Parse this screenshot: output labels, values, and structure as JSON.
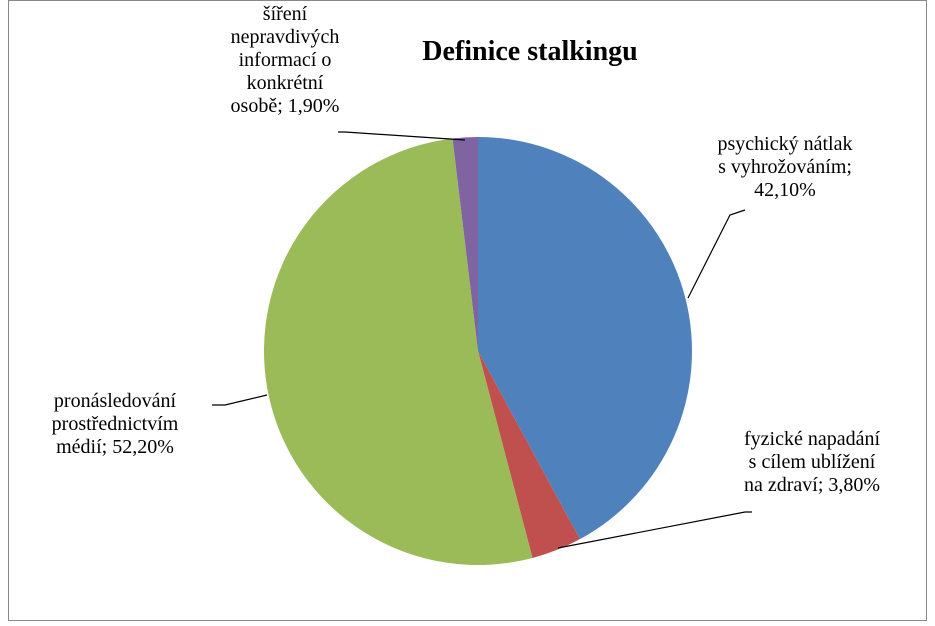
{
  "chart_data": {
    "type": "pie",
    "title": "Definice stalkingu",
    "categories": [
      "psychický nátlak s vyhrožováním",
      "fyzické napadání s cílem ublížení na zdraví",
      "pronásledování prostřednictvím médií",
      "šíření nepravdivých informací o konkrétní osobě"
    ],
    "values": [
      42.1,
      3.8,
      52.2,
      1.9
    ],
    "value_labels": [
      "42,10%",
      "3,80%",
      "52,20%",
      "1,90%"
    ],
    "colors": [
      "#4f81bd",
      "#c0504d",
      "#9bbb59",
      "#8064a2"
    ]
  }
}
